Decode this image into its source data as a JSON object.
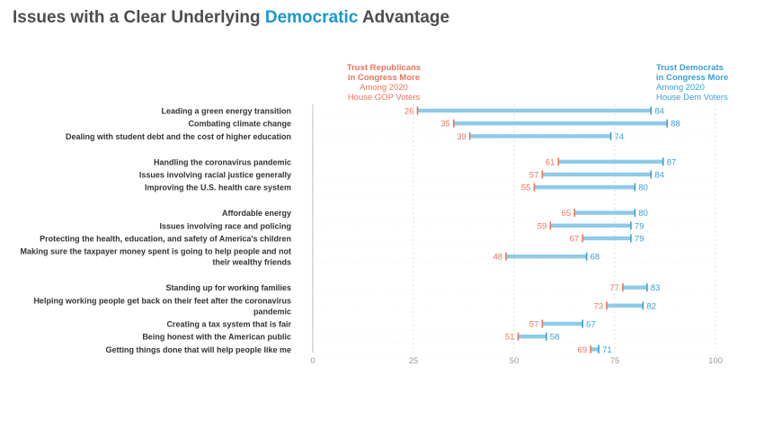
{
  "title": {
    "prefix": "Issues with a Clear Underlying ",
    "accent": "Democratic",
    "suffix": " Advantage"
  },
  "colors": {
    "republican": "#e9755b",
    "democrat": "#3a9fd4",
    "bar": "#8ecae9",
    "grid": "#dddddd",
    "axis_text": "#999999",
    "label_text": "#333333"
  },
  "headers": {
    "republican": {
      "line1": "Trust Republicans",
      "line2": "in Congress More",
      "line3": "Among 2020",
      "line4": "House GOP Voters"
    },
    "democrat": {
      "line1": "Trust Democrats",
      "line2": "in Congress More",
      "line3": "Among 2020",
      "line4": "House Dem Voters"
    }
  },
  "chart_data": {
    "type": "dumbbell",
    "title": "Issues with a Clear Underlying Democratic Advantage",
    "xlim": [
      0,
      100
    ],
    "x_ticks": [
      0,
      25,
      50,
      75,
      100
    ],
    "series": [
      {
        "name": "Trust Republicans in Congress More — Among 2020 House GOP Voters"
      },
      {
        "name": "Trust Democrats in Congress More — Among 2020 House Dem Voters"
      }
    ],
    "groups": [
      [
        {
          "label": "Leading a green energy transition",
          "rep": 26,
          "dem": 84
        },
        {
          "label": "Combating climate change",
          "rep": 35,
          "dem": 88
        },
        {
          "label": "Dealing with student debt and the cost of higher education",
          "rep": 39,
          "dem": 74
        }
      ],
      [
        {
          "label": "Handling the coronavirus pandemic",
          "rep": 61,
          "dem": 87
        },
        {
          "label": "Issues involving racial justice generally",
          "rep": 57,
          "dem": 84
        },
        {
          "label": "Improving the U.S. health care system",
          "rep": 55,
          "dem": 80
        }
      ],
      [
        {
          "label": "Affordable energy",
          "rep": 65,
          "dem": 80
        },
        {
          "label": "Issues involving race and policing",
          "rep": 59,
          "dem": 79
        },
        {
          "label": "Protecting the health, education, and safety of America's children",
          "rep": 67,
          "dem": 79
        },
        {
          "label": [
            "Making sure the taxpayer money spent is going to help people and not",
            "their wealthy friends"
          ],
          "rep": 48,
          "dem": 68
        }
      ],
      [
        {
          "label": "Standing up for working families",
          "rep": 77,
          "dem": 83
        },
        {
          "label": [
            "Helping working people get back on their feet after the coronavirus",
            "pandemic"
          ],
          "rep": 73,
          "dem": 82
        },
        {
          "label": "Creating a tax system that is fair",
          "rep": 57,
          "dem": 67
        },
        {
          "label": "Being honest with the American public",
          "rep": 51,
          "dem": 58
        },
        {
          "label": "Getting things done that will help people like me",
          "rep": 69,
          "dem": 71
        }
      ]
    ]
  }
}
